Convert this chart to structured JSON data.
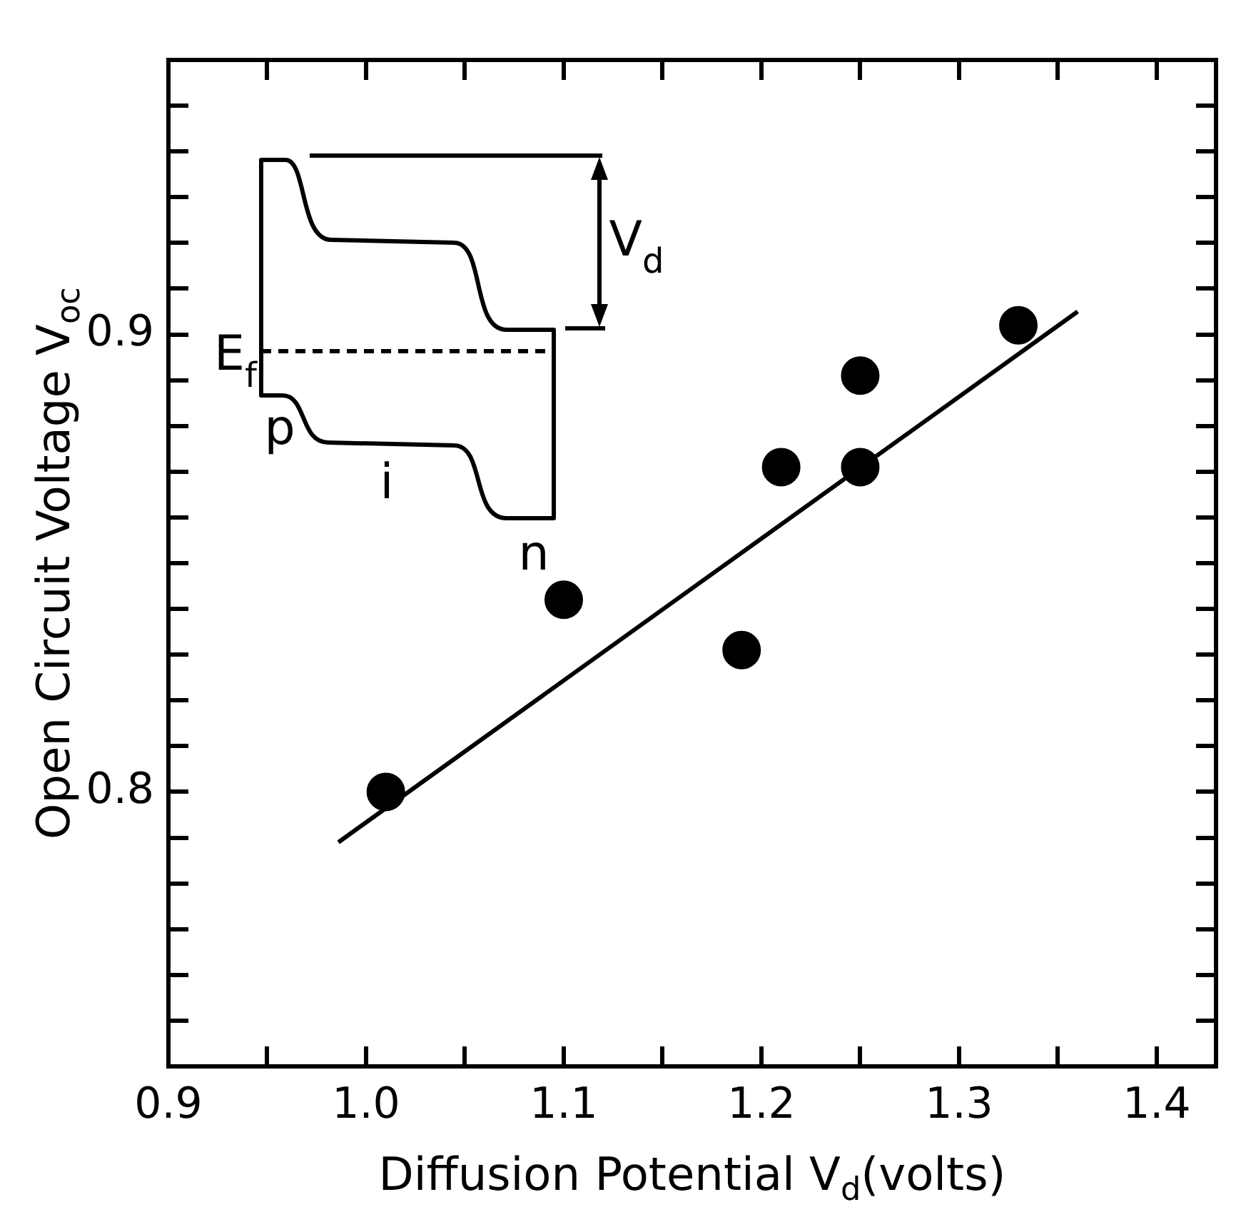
{
  "chart_data": {
    "type": "scatter",
    "xlabel": "Diffusion Potential V$_{d}$(volts)",
    "ylabel": "Open Circuit Voltage V$_{oc}$",
    "xlim": [
      0.9,
      1.43
    ],
    "ylim": [
      0.74,
      0.96
    ],
    "xticks": [
      0.9,
      {
        "value": 0.95,
        "label": null
      },
      {
        "value": 1,
        "label": "1.0"
      },
      {
        "value": 1.05,
        "label": null
      },
      1.1,
      {
        "value": 1.15,
        "label": null
      },
      1.2,
      {
        "value": 1.25,
        "label": null
      },
      1.3,
      {
        "value": 1.35,
        "label": null
      },
      1.4
    ],
    "yticks": [
      {
        "value": 0.75,
        "label": null
      },
      {
        "value": 0.76,
        "label": null
      },
      {
        "value": 0.77,
        "label": null
      },
      {
        "value": 0.78,
        "label": null
      },
      {
        "value": 0.79,
        "label": null
      },
      0.8,
      {
        "value": 0.81,
        "label": null
      },
      {
        "value": 0.82,
        "label": null
      },
      {
        "value": 0.83,
        "label": null
      },
      {
        "value": 0.84,
        "label": null
      },
      {
        "value": 0.85,
        "label": null
      },
      {
        "value": 0.86,
        "label": null
      },
      {
        "value": 0.87,
        "label": null
      },
      {
        "value": 0.88,
        "label": null
      },
      {
        "value": 0.89,
        "label": null
      },
      0.9,
      {
        "value": 0.91,
        "label": null
      },
      {
        "value": 0.92,
        "label": null
      },
      {
        "value": 0.93,
        "label": null
      },
      {
        "value": 0.94,
        "label": null
      },
      {
        "value": 0.95,
        "label": null
      }
    ],
    "series": [
      {
        "color": "#000000",
        "marker": "circle",
        "x": [
          1.01,
          1.1,
          1.19,
          1.21,
          1.25,
          1.25,
          1.33
        ],
        "values": [
          0.8,
          0.842,
          0.831,
          0.871,
          0.891,
          0.871,
          0.902
        ]
      },
      {
        "type": "line",
        "color": "#000000",
        "marker": "none",
        "line_style": "solid",
        "x": [
          0.986,
          1.36
        ],
        "values": [
          0.789,
          0.905
        ]
      }
    ],
    "annotations": [
      "V$_{d}$",
      "E$_{f}$",
      "p",
      "i",
      "n"
    ],
    "grid": false,
    "legend": false
  }
}
